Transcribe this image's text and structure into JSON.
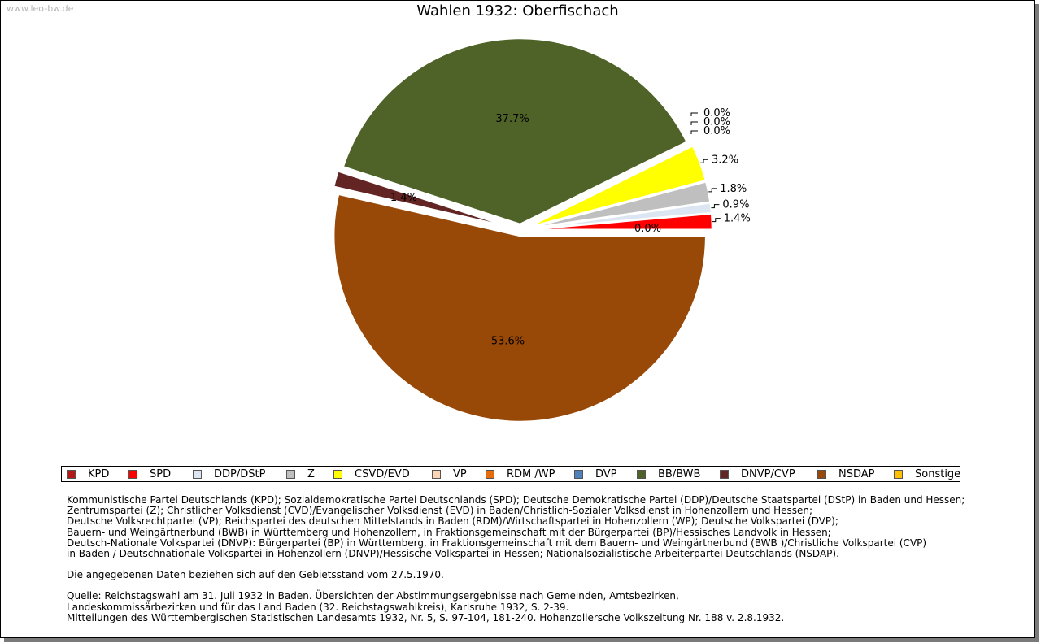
{
  "watermark": "www.leo-bw.de",
  "chart_data": {
    "type": "pie",
    "title": "Wahlen 1932: Oberfischach",
    "start_angle_deg": 0,
    "direction": "counterclockwise",
    "slices": [
      {
        "party": "KPD",
        "value": 0.0,
        "label": "0.0%",
        "color": "#b41818"
      },
      {
        "party": "SPD",
        "value": 1.4,
        "label": "1.4%",
        "color": "#ff0000"
      },
      {
        "party": "DDP/DStP",
        "value": 0.9,
        "label": "0.9%",
        "color": "#dce6f2"
      },
      {
        "party": "Z",
        "value": 1.8,
        "label": "1.8%",
        "color": "#bfbfbf"
      },
      {
        "party": "CSVD/EVD",
        "value": 3.2,
        "label": "3.2%",
        "color": "#ffff00"
      },
      {
        "party": "VP",
        "value": 0.0,
        "label": "0.0%",
        "color": "#fcd5b5"
      },
      {
        "party": "RDM /WP",
        "value": 0.0,
        "label": "0.0%",
        "color": "#e46c0a"
      },
      {
        "party": "DVP",
        "value": 0.0,
        "label": "0.0%",
        "color": "#4f81bd"
      },
      {
        "party": "BB/BWB",
        "value": 37.7,
        "label": "37.7%",
        "color": "#4f6228"
      },
      {
        "party": "DNVP/CVP",
        "value": 1.4,
        "label": "1.4%",
        "color": "#632523"
      },
      {
        "party": "NSDAP",
        "value": 53.6,
        "label": "53.6%",
        "color": "#984807"
      },
      {
        "party": "Sonstige",
        "value": 0.0,
        "label": "0.0%",
        "color": "#ffc000"
      }
    ]
  },
  "legend": {
    "items": [
      {
        "label": "KPD",
        "color": "#b41818"
      },
      {
        "label": "SPD",
        "color": "#ff0000"
      },
      {
        "label": "DDP/DStP",
        "color": "#dce6f2"
      },
      {
        "label": "Z",
        "color": "#bfbfbf"
      },
      {
        "label": "CSVD/EVD",
        "color": "#ffff00"
      },
      {
        "label": "VP",
        "color": "#fcd5b5"
      },
      {
        "label": "RDM /WP",
        "color": "#e46c0a"
      },
      {
        "label": "DVP",
        "color": "#4f81bd"
      },
      {
        "label": "BB/BWB",
        "color": "#4f6228"
      },
      {
        "label": "DNVP/CVP",
        "color": "#632523"
      },
      {
        "label": "NSDAP",
        "color": "#984807"
      },
      {
        "label": "Sonstige",
        "color": "#ffc000"
      }
    ]
  },
  "notes": {
    "parties": [
      "Kommunistische Partei Deutschlands (KPD); Sozialdemokratische Partei Deutschlands (SPD); Deutsche Demokratische Partei (DDP)/Deutsche Staatspartei (DStP) in Baden und Hessen;",
      "Zentrumspartei (Z); Christlicher Volksdienst (CVD)/Evangelischer Volksdienst (EVD) in Baden/Christlich-Sozialer Volksdienst in Hohenzollern und Hessen;",
      "Deutsche Volksrechtpartei (VP); Reichspartei des deutschen Mittelstands in Baden (RDM)/Wirtschaftspartei in Hohenzollern (WP); Deutsche Volkspartei (DVP);",
      "Bauern- und Weingärtnerbund (BWB) in Württemberg und Hohenzollern, in Fraktionsgemeinschaft mit der Bürgerpartei (BP)/Hessisches Landvolk in Hessen;",
      "Deutsch-Nationale Volkspartei (DNVP): Bürgerpartei (BP) in Württemberg, in Fraktionsgemeinschaft mit dem Bauern- und Weingärtnerbund (BWB )/Christliche Volkspartei (CVP)",
      "in Baden / Deutschnationale Volkspartei in Hohenzollern (DNVP)/Hessische Volkspartei in Hessen; Nationalsozialistische Arbeiterpartei Deutschlands (NSDAP)."
    ],
    "gebietsstand": "Die angegebenen Daten beziehen sich auf den Gebietsstand vom 27.5.1970.",
    "source": [
      "Quelle: Reichstagswahl am 31. Juli 1932 in Baden. Übersichten der Abstimmungsergebnisse nach Gemeinden, Amtsbezirken,",
      "Landeskommissärbezirken und für das Land Baden (32. Reichstagswahlkreis), Karlsruhe 1932, S. 2-39.",
      "Mitteilungen des Württembergischen Statistischen Landesamts 1932, Nr. 5, S. 97-104, 181-240. Hohenzollersche Volkszeitung Nr. 188 v. 2.8.1932."
    ]
  }
}
